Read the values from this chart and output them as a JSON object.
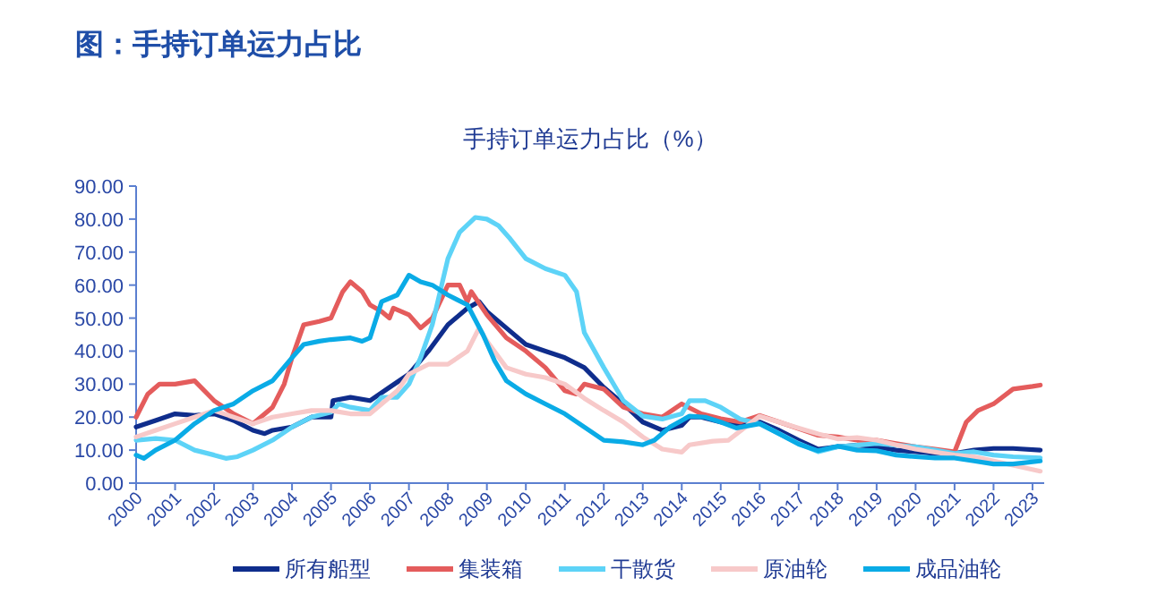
{
  "chart_data": {
    "type": "line",
    "title": "图：手持订单运力占比",
    "subtitle": "手持订单运力占比（%）",
    "xlim": [
      2000,
      2023.3
    ],
    "xticks": [
      2000,
      2001,
      2002,
      2003,
      2004,
      2005,
      2006,
      2007,
      2008,
      2009,
      2010,
      2011,
      2012,
      2013,
      2014,
      2015,
      2016,
      2017,
      2018,
      2019,
      2020,
      2021,
      2022,
      2023
    ],
    "ylim": [
      0,
      90
    ],
    "yticks": [
      {
        "value": 0,
        "label": "0.00"
      },
      {
        "value": 10,
        "label": "10.00"
      },
      {
        "value": 20,
        "label": "20.00"
      },
      {
        "value": 30,
        "label": "30.00"
      },
      {
        "value": 40,
        "label": "40.00"
      },
      {
        "value": 50,
        "label": "50.00"
      },
      {
        "value": 60,
        "label": "60.00"
      },
      {
        "value": 70,
        "label": "70.00"
      },
      {
        "value": 80,
        "label": "80.00"
      },
      {
        "value": 90,
        "label": "90.00"
      }
    ],
    "legend": "bottom",
    "series": [
      {
        "name": "所有船型",
        "color": "#0f2d8c",
        "x": [
          2000,
          2000.5,
          2001,
          2001.5,
          2002,
          2002.5,
          2003,
          2003.3,
          2003.5,
          2004,
          2004.5,
          2005,
          2005.05,
          2005.5,
          2006,
          2006.5,
          2007,
          2007.5,
          2008,
          2008.5,
          2008.8,
          2009,
          2009.5,
          2010,
          2010.5,
          2011,
          2011.5,
          2012,
          2012.5,
          2013,
          2013.5,
          2014,
          2014.2,
          2014.5,
          2015,
          2015.5,
          2016,
          2016.5,
          2017,
          2017.5,
          2018,
          2018.5,
          2019,
          2019.5,
          2020,
          2020.5,
          2021,
          2021.5,
          2022,
          2022.5,
          2023.2
        ],
        "values": [
          17,
          19,
          21,
          20.5,
          21,
          19,
          16,
          15,
          16,
          17,
          20,
          20,
          25,
          26,
          25,
          29,
          33,
          40,
          48,
          53,
          55,
          52,
          47,
          42,
          40,
          38,
          35,
          29,
          24,
          18.5,
          16,
          17.5,
          20,
          20,
          18.5,
          17.5,
          18.5,
          16,
          13,
          10.3,
          11,
          11.5,
          11,
          10,
          9.5,
          9,
          9,
          10,
          10.5,
          10.5,
          10
        ]
      },
      {
        "name": "集装箱",
        "color": "#e45c5c",
        "x": [
          2000,
          2000.3,
          2000.6,
          2001,
          2001.5,
          2002,
          2002.5,
          2003,
          2003.5,
          2003.8,
          2004,
          2004.3,
          2004.7,
          2005,
          2005.3,
          2005.5,
          2005.8,
          2006,
          2006.3,
          2006.5,
          2006.6,
          2007,
          2007.3,
          2007.6,
          2008,
          2008.3,
          2008.5,
          2008.6,
          2009,
          2009.5,
          2010,
          2010.5,
          2011,
          2011.3,
          2011.5,
          2012,
          2012.5,
          2013,
          2013.5,
          2014,
          2014.5,
          2015,
          2015.5,
          2016,
          2016.5,
          2017,
          2017.5,
          2018,
          2018.5,
          2019,
          2019.5,
          2020,
          2020.5,
          2021,
          2021.3,
          2021.6,
          2022,
          2022.5,
          2023,
          2023.2
        ],
        "values": [
          20,
          27,
          30,
          30,
          31,
          25,
          21,
          18,
          23,
          30,
          38,
          48,
          49,
          50,
          58,
          61,
          58,
          54,
          52,
          50,
          53,
          51,
          47,
          50,
          60,
          60,
          55,
          58,
          51,
          44,
          40,
          35,
          28,
          27,
          30,
          28.5,
          23,
          21,
          20,
          24,
          21,
          19.5,
          18.5,
          20.5,
          18.5,
          16.5,
          14.5,
          14,
          13,
          13,
          12,
          11,
          10.3,
          9.5,
          18.5,
          22,
          24,
          28.5,
          29.3,
          29.7
        ]
      },
      {
        "name": "干散货",
        "color": "#5dd3f7",
        "x": [
          2000,
          2000.5,
          2001,
          2001.5,
          2002,
          2002.3,
          2002.6,
          2003,
          2003.5,
          2004,
          2004.5,
          2005,
          2005.2,
          2005.5,
          2006,
          2006.3,
          2006.7,
          2007,
          2007.3,
          2007.6,
          2008,
          2008.3,
          2008.7,
          2009,
          2009.3,
          2009.6,
          2010,
          2010.5,
          2011,
          2011.3,
          2011.5,
          2012,
          2012.5,
          2013,
          2013.5,
          2014,
          2014.2,
          2014.6,
          2015,
          2015.5,
          2016,
          2016.5,
          2017,
          2017.5,
          2018,
          2018.5,
          2019,
          2019.5,
          2020,
          2020.5,
          2021,
          2021.5,
          2022,
          2022.5,
          2023.2
        ],
        "values": [
          13,
          13.5,
          13,
          10,
          8.5,
          7.5,
          8,
          10,
          13,
          17,
          20,
          21.5,
          24,
          23,
          22,
          26,
          26,
          30,
          38,
          48,
          68,
          76,
          80.5,
          80,
          78,
          74,
          68,
          65,
          63,
          58,
          45.6,
          35,
          25,
          20.3,
          19.4,
          21,
          25,
          25,
          23,
          19.4,
          18,
          15,
          12,
          9.5,
          11,
          11.5,
          12,
          11.5,
          11,
          10,
          9,
          9.5,
          8.5,
          8,
          7.6
        ]
      },
      {
        "name": "原油轮",
        "color": "#f7c9c9",
        "x": [
          2000,
          2000.5,
          2001,
          2001.5,
          2002,
          2002.5,
          2003,
          2003.5,
          2004,
          2004.5,
          2005,
          2005.5,
          2006,
          2006.3,
          2006.7,
          2007,
          2007.5,
          2008,
          2008.5,
          2008.8,
          2009,
          2009.5,
          2010,
          2010.5,
          2011,
          2011.5,
          2012,
          2012.5,
          2013,
          2013.5,
          2014,
          2014.2,
          2014.8,
          2015.2,
          2015.6,
          2016,
          2016.5,
          2017,
          2017.5,
          2018,
          2018.5,
          2019,
          2019.5,
          2020,
          2020.5,
          2021,
          2021.5,
          2022,
          2022.5,
          2023.2
        ],
        "values": [
          14,
          16,
          18,
          20,
          22,
          20,
          18,
          20,
          21,
          22,
          22,
          21,
          21,
          24,
          28,
          33,
          36,
          36,
          40,
          47,
          43,
          35,
          33,
          32,
          30,
          25.7,
          22,
          18.5,
          14,
          10.3,
          9.4,
          11.6,
          12.7,
          13,
          16.7,
          20.3,
          18.5,
          16.7,
          14.9,
          13.4,
          13.8,
          13,
          11.6,
          10.3,
          9.4,
          8.5,
          8,
          6.7,
          5.4,
          3.6
        ]
      },
      {
        "name": "成品油轮",
        "color": "#0aabe6",
        "x": [
          2000,
          2000.2,
          2000.5,
          2001,
          2001.5,
          2002,
          2002.5,
          2003,
          2003.5,
          2004,
          2004.3,
          2004.7,
          2005,
          2005.5,
          2005.8,
          2006,
          2006.3,
          2006.7,
          2007,
          2007.3,
          2007.6,
          2008,
          2008.5,
          2008.9,
          2009.2,
          2009.5,
          2010,
          2010.5,
          2011,
          2011.5,
          2012,
          2012.5,
          2013,
          2013.3,
          2013.7,
          2014.2,
          2014.6,
          2015,
          2015.4,
          2016,
          2016.5,
          2017,
          2017.5,
          2018,
          2018.5,
          2019,
          2019.5,
          2020,
          2020.5,
          2021,
          2021.5,
          2022,
          2022.5,
          2023.2
        ],
        "values": [
          8.5,
          7.5,
          10,
          13,
          18,
          22,
          24,
          28,
          31,
          38,
          42,
          43,
          43.5,
          44,
          43,
          44,
          55,
          57,
          63,
          61,
          60,
          57,
          54,
          45,
          37,
          31,
          27,
          24,
          21,
          17,
          13,
          12.5,
          11.6,
          13,
          17,
          20.3,
          20,
          18.5,
          16.7,
          18,
          14.9,
          11.8,
          9.8,
          11.2,
          10,
          9.8,
          8.5,
          8,
          7.6,
          7.6,
          6.7,
          5.8,
          5.8,
          6.7
        ]
      }
    ]
  }
}
